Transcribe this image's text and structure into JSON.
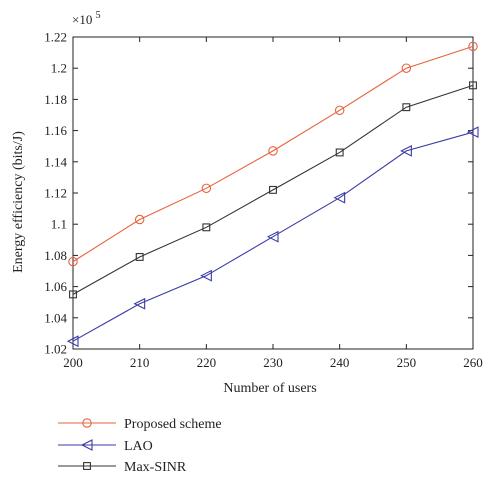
{
  "chart_data": {
    "type": "line",
    "xlabel": "Number of users",
    "ylabel": "Energy efficiency (bits/J)",
    "exponent_label": "×10",
    "exponent_power": "5",
    "x": [
      200,
      210,
      220,
      230,
      240,
      250,
      260
    ],
    "xlim": [
      200,
      260
    ],
    "ylim": [
      1.02,
      1.22
    ],
    "xticks": [
      "200",
      "210",
      "220",
      "230",
      "240",
      "250",
      "260"
    ],
    "yticks": [
      "1.02",
      "1.04",
      "1.06",
      "1.08",
      "1.1",
      "1.12",
      "1.14",
      "1.16",
      "1.18",
      "1.2",
      "1.22"
    ],
    "grid": false,
    "legend_position": "below-left",
    "series": [
      {
        "name": "Proposed scheme",
        "marker": "circle",
        "color": "#e8613c",
        "values": [
          1.076,
          1.103,
          1.123,
          1.147,
          1.173,
          1.2,
          1.214
        ]
      },
      {
        "name": "LAO",
        "marker": "triangle-left",
        "color": "#3a3aa6",
        "values": [
          1.025,
          1.049,
          1.067,
          1.092,
          1.117,
          1.147,
          1.159
        ]
      },
      {
        "name": "Max-SINR",
        "marker": "square",
        "color": "#333333",
        "values": [
          1.055,
          1.079,
          1.098,
          1.122,
          1.146,
          1.175,
          1.189
        ]
      }
    ]
  }
}
